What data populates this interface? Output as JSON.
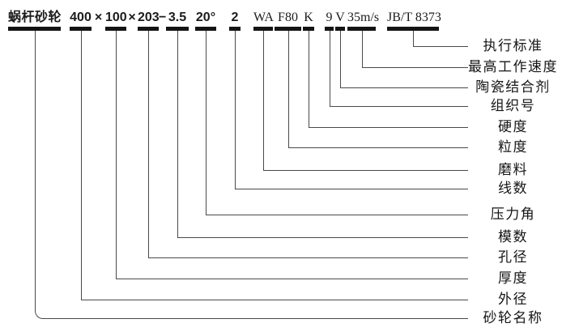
{
  "diagram": {
    "tokens": [
      {
        "text": "蜗杆砂轮",
        "label": "砂轮名称"
      },
      {
        "text": "400",
        "label": "外径"
      },
      {
        "text": "×"
      },
      {
        "text": "100",
        "label": "厚度"
      },
      {
        "text": "×"
      },
      {
        "text": "203",
        "label": "孔径"
      },
      {
        "text": "−"
      },
      {
        "text": "3.5",
        "label": "模数"
      },
      {
        "text": "20°",
        "label": "压力角"
      },
      {
        "text": "2",
        "label": "线数"
      },
      {
        "text": "WA",
        "label": "磨料"
      },
      {
        "text": "F80",
        "label": "粒度"
      },
      {
        "text": "K",
        "label": "硬度"
      },
      {
        "text": "9",
        "label": "组织号"
      },
      {
        "text": "V",
        "label": "陶瓷结合剂"
      },
      {
        "text": "35m/s",
        "label": "最高工作速度"
      },
      {
        "text": "JB/T 8373",
        "label": "执行标准"
      }
    ],
    "colors": {
      "bar": "#141414",
      "line": "#4a4a4a",
      "text": "#1c1c1c",
      "background": "#ffffff"
    }
  }
}
